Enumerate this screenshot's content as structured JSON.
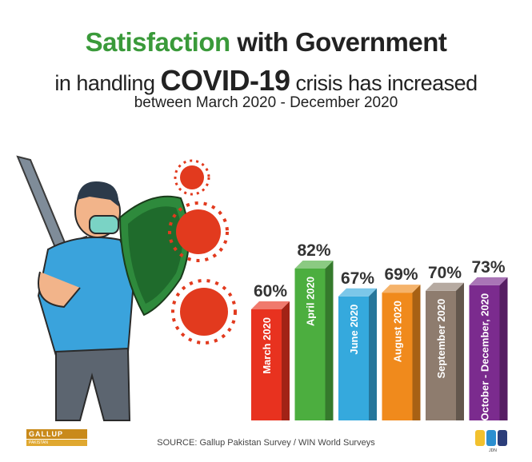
{
  "title": {
    "line1_a": "Satisfaction",
    "line1_b": "with",
    "line1_c": "Government",
    "line2_a": "in handling",
    "line2_b": "COVID-19",
    "line2_c": "crisis has increased",
    "line3": "between March 2020 - December 2020"
  },
  "chart_data": {
    "type": "bar",
    "title": "Satisfaction with Government in handling COVID-19 crisis has increased between March 2020 - December 2020",
    "categories": [
      "March 2020",
      "April 2020",
      "June 2020",
      "August 2020",
      "September 2020",
      "October - December, 2020"
    ],
    "values": [
      60,
      82,
      67,
      69,
      70,
      73
    ],
    "value_labels": [
      "60%",
      "82%",
      "67%",
      "69%",
      "70%",
      "73%"
    ],
    "unit": "%",
    "colors": [
      "#e8321f",
      "#4cae3f",
      "#35a9dd",
      "#f08a1c",
      "#8e7c6e",
      "#7b2b8e"
    ],
    "xlabel": "",
    "ylabel": "",
    "grid": false,
    "legend": "none"
  },
  "source": "SOURCE: Gallup Pakistan Survey / WIN World Surveys",
  "logos": {
    "gallup_top": "GALLUP",
    "gallup_sub": "PAKISTAN",
    "gallup_tag": "Pakistan's Premier Social Research Lab",
    "jdn": "JDN"
  }
}
